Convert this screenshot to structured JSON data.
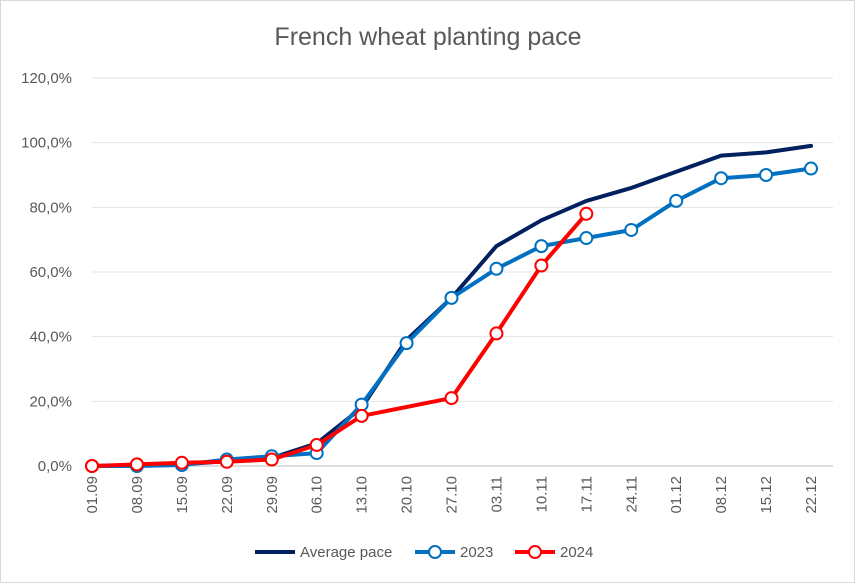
{
  "chart_data": {
    "type": "line",
    "title": "French wheat planting pace",
    "xlabel": "",
    "ylabel": "",
    "categories": [
      "01.09",
      "08.09",
      "15.09",
      "22.09",
      "29.09",
      "06.10",
      "13.10",
      "20.10",
      "27.10",
      "03.11",
      "10.11",
      "17.11",
      "24.11",
      "01.12",
      "08.12",
      "15.12",
      "22.12"
    ],
    "y_ticks": [
      "0,0%",
      "20,0%",
      "40,0%",
      "60,0%",
      "80,0%",
      "100,0%",
      "120,0%"
    ],
    "ylim": [
      0,
      120
    ],
    "grid": true,
    "legend_position": "bottom",
    "series": [
      {
        "name": "Average pace",
        "color": "#002060",
        "markers": false,
        "values": [
          0,
          0.3,
          0.5,
          1.5,
          2.5,
          7,
          18,
          39,
          52,
          68,
          76,
          82,
          86,
          91,
          96,
          97,
          99
        ]
      },
      {
        "name": "2023",
        "color": "#0070c0",
        "markers": true,
        "values": [
          0,
          0,
          0.3,
          2,
          3,
          4,
          19,
          38,
          52,
          61,
          68,
          70.5,
          73,
          82,
          89,
          90,
          92
        ]
      },
      {
        "name": "2024",
        "color": "#ff0000",
        "markers": true,
        "values": [
          0,
          0.5,
          1,
          1.3,
          2,
          6.5,
          15.5,
          null,
          21,
          41,
          62,
          78,
          null,
          null,
          null,
          null,
          null
        ]
      }
    ]
  }
}
